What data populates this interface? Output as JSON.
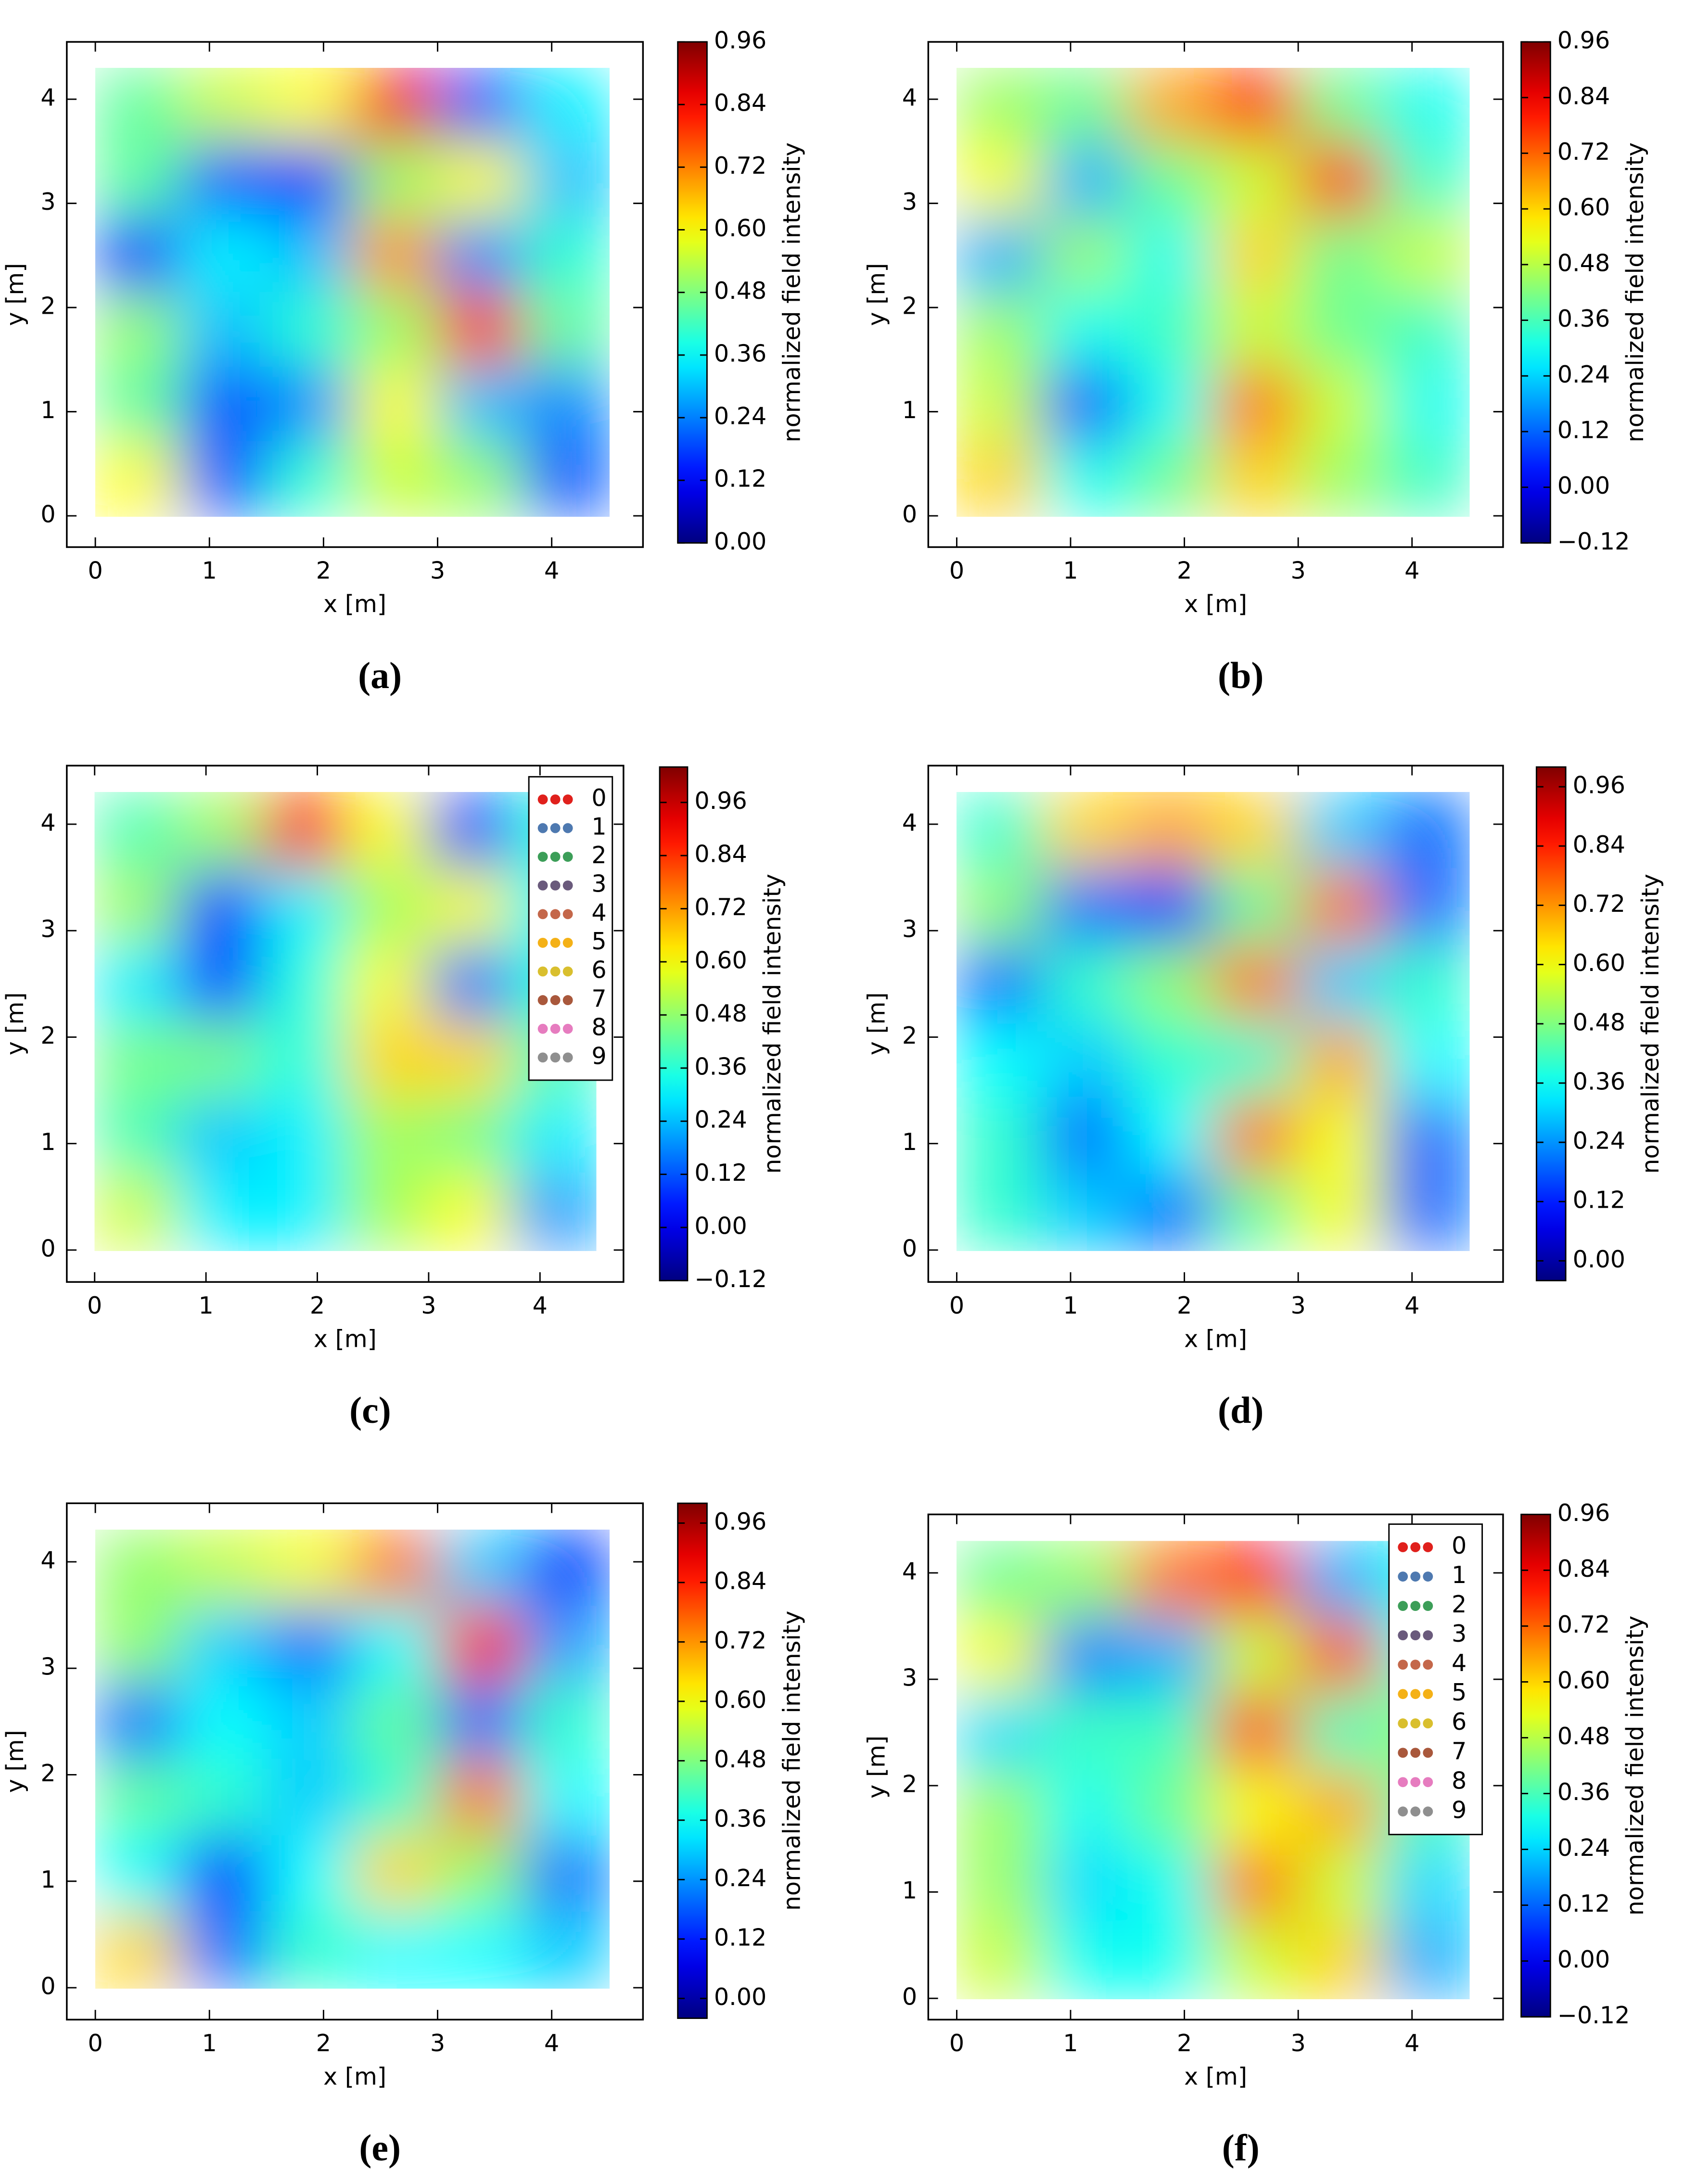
{
  "chart_data": [
    {
      "type": "heatmap",
      "caption": "(a)",
      "xlabel": "x [m]",
      "ylabel": "y [m]",
      "colorbar_label": "normalized field intensity",
      "xlim": [
        -0.25,
        4.8
      ],
      "ylim": [
        -0.3,
        4.55
      ],
      "xticks": [
        0,
        1,
        2,
        3,
        4
      ],
      "yticks": [
        0,
        1,
        2,
        3,
        4
      ],
      "clim": [
        0,
        0.96
      ],
      "cticks": [
        {
          "value": 0,
          "label": "0.00"
        },
        0.12,
        0.24,
        0.36,
        0.48,
        {
          "value": 0.6,
          "label": "0.60"
        },
        0.72,
        0.84,
        0.96
      ],
      "heatmap": {
        "x": [
          0.375,
          1.125,
          1.875,
          2.625,
          3.375,
          4.125
        ],
        "y": [
          3.942,
          3.225,
          2.508,
          1.792,
          1.075,
          0.358
        ],
        "z": [
          [
            0.45,
            0.55,
            0.6,
            0.85,
            0.2,
            0.35
          ],
          [
            0.45,
            0.2,
            0.15,
            0.5,
            0.6,
            0.3
          ],
          [
            0.15,
            0.35,
            0.3,
            0.7,
            0.25,
            0.4
          ],
          [
            0.5,
            0.3,
            0.4,
            0.5,
            0.8,
            0.45
          ],
          [
            0.45,
            0.2,
            0.25,
            0.6,
            0.3,
            0.25
          ],
          [
            0.6,
            0.2,
            0.4,
            0.55,
            0.5,
            0.2
          ]
        ]
      }
    },
    {
      "type": "heatmap",
      "caption": "(b)",
      "xlabel": "x [m]",
      "ylabel": "y [m]",
      "colorbar_label": "normalized field intensity",
      "xlim": [
        -0.25,
        4.8
      ],
      "ylim": [
        -0.3,
        4.55
      ],
      "xticks": [
        0,
        1,
        2,
        3,
        4
      ],
      "yticks": [
        0,
        1,
        2,
        3,
        4
      ],
      "clim": [
        -0.12,
        0.96
      ],
      "cticks": [
        {
          "value": -0.12,
          "label": "−0.12"
        },
        {
          "value": 0,
          "label": "0.00"
        },
        0.12,
        0.24,
        0.36,
        0.48,
        {
          "value": 0.6,
          "label": "0.60"
        },
        0.72,
        0.84,
        0.96
      ],
      "heatmap": {
        "x": [
          0.375,
          1.125,
          1.875,
          2.625,
          3.375,
          4.125
        ],
        "y": [
          3.942,
          3.225,
          2.508,
          1.792,
          1.075,
          0.358
        ],
        "z": [
          [
            0.45,
            0.4,
            0.65,
            0.8,
            0.4,
            0.3
          ],
          [
            0.55,
            0.2,
            0.4,
            0.5,
            0.8,
            0.35
          ],
          [
            0.2,
            0.45,
            0.3,
            0.6,
            0.4,
            0.5
          ],
          [
            0.45,
            0.3,
            0.35,
            0.5,
            0.4,
            0.35
          ],
          [
            0.5,
            0.1,
            0.3,
            0.7,
            0.5,
            0.3
          ],
          [
            0.6,
            0.3,
            0.4,
            0.6,
            0.45,
            0.35
          ]
        ]
      }
    },
    {
      "type": "heatmap",
      "caption": "(c)",
      "xlabel": "x [m]",
      "ylabel": "y [m]",
      "colorbar_label": "normalized field intensity",
      "xlim": [
        -0.25,
        4.75
      ],
      "ylim": [
        -0.3,
        4.55
      ],
      "xticks": [
        0,
        1,
        2,
        3,
        4
      ],
      "yticks": [
        0,
        1,
        2,
        3,
        4
      ],
      "clim": [
        -0.12,
        1.04
      ],
      "cticks": [
        {
          "value": -0.12,
          "label": "−0.12"
        },
        {
          "value": 0,
          "label": "0.00"
        },
        0.12,
        0.24,
        0.36,
        0.48,
        {
          "value": 0.6,
          "label": "0.60"
        },
        0.72,
        0.84,
        0.96
      ],
      "heatmap": {
        "x": [
          0.375,
          1.125,
          1.875,
          2.625,
          3.375,
          4.125
        ],
        "y": [
          3.942,
          3.225,
          2.508,
          1.792,
          1.075,
          0.358
        ],
        "z": [
          [
            0.4,
            0.5,
            0.9,
            0.6,
            0.1,
            0.35
          ],
          [
            0.5,
            0.1,
            0.3,
            0.5,
            0.6,
            0.3
          ],
          [
            0.3,
            0.1,
            0.35,
            0.6,
            0.15,
            0.35
          ],
          [
            0.45,
            0.45,
            0.35,
            0.65,
            0.65,
            0.4
          ],
          [
            0.4,
            0.25,
            0.3,
            0.5,
            0.45,
            0.3
          ],
          [
            0.55,
            0.3,
            0.3,
            0.5,
            0.6,
            0.2
          ]
        ]
      },
      "legend": [
        {
          "name": "0",
          "color": "#e0201c"
        },
        {
          "name": "1",
          "color": "#4e79b0"
        },
        {
          "name": "2",
          "color": "#3c9e58"
        },
        {
          "name": "3",
          "color": "#6a5a7c"
        },
        {
          "name": "4",
          "color": "#c4674a"
        },
        {
          "name": "5",
          "color": "#f4b117"
        },
        {
          "name": "6",
          "color": "#d9bf2e"
        },
        {
          "name": "7",
          "color": "#a9583c"
        },
        {
          "name": "8",
          "color": "#e67cbf"
        },
        {
          "name": "9",
          "color": "#8f8f8f"
        }
      ]
    },
    {
      "type": "heatmap",
      "caption": "(d)",
      "xlabel": "x [m]",
      "ylabel": "y [m]",
      "colorbar_label": "normalized field intensity",
      "xlim": [
        -0.25,
        4.8
      ],
      "ylim": [
        -0.3,
        4.55
      ],
      "xticks": [
        0,
        1,
        2,
        3,
        4
      ],
      "yticks": [
        0,
        1,
        2,
        3,
        4
      ],
      "clim": [
        -0.04,
        1.0
      ],
      "cticks": [
        {
          "value": 0,
          "label": "0.00"
        },
        0.12,
        0.24,
        0.36,
        0.48,
        {
          "value": 0.6,
          "label": "0.60"
        },
        0.72,
        0.84,
        0.96
      ],
      "heatmap": {
        "x": [
          0.375,
          1.125,
          1.875,
          2.625,
          3.375,
          4.125
        ],
        "y": [
          3.942,
          3.225,
          2.508,
          1.792,
          1.075,
          0.358
        ],
        "z": [
          [
            0.4,
            0.65,
            0.7,
            0.65,
            0.3,
            0.2
          ],
          [
            0.5,
            0.2,
            0.15,
            0.45,
            0.75,
            0.2
          ],
          [
            0.2,
            0.4,
            0.5,
            0.75,
            0.3,
            0.4
          ],
          [
            0.35,
            0.3,
            0.4,
            0.4,
            0.7,
            0.35
          ],
          [
            0.4,
            0.2,
            0.35,
            0.75,
            0.6,
            0.2
          ],
          [
            0.4,
            0.3,
            0.2,
            0.45,
            0.6,
            0.2
          ]
        ]
      }
    },
    {
      "type": "heatmap",
      "caption": "(e)",
      "xlabel": "x [m]",
      "ylabel": "y [m]",
      "colorbar_label": "normalized field intensity",
      "xlim": [
        -0.25,
        4.8
      ],
      "ylim": [
        -0.3,
        4.55
      ],
      "xticks": [
        0,
        1,
        2,
        3,
        4
      ],
      "yticks": [
        0,
        1,
        2,
        3,
        4
      ],
      "clim": [
        -0.04,
        1.0
      ],
      "cticks": [
        {
          "value": 0,
          "label": "0.00"
        },
        0.12,
        0.24,
        0.36,
        0.48,
        {
          "value": 0.6,
          "label": "0.60"
        },
        0.72,
        0.84,
        0.96
      ],
      "heatmap": {
        "x": [
          0.375,
          1.125,
          1.875,
          2.625,
          3.375,
          4.125
        ],
        "y": [
          3.942,
          3.225,
          2.508,
          1.792,
          1.075,
          0.358
        ],
        "z": [
          [
            0.5,
            0.55,
            0.6,
            0.75,
            0.3,
            0.15
          ],
          [
            0.5,
            0.3,
            0.2,
            0.35,
            0.85,
            0.25
          ],
          [
            0.2,
            0.35,
            0.3,
            0.45,
            0.2,
            0.4
          ],
          [
            0.45,
            0.4,
            0.3,
            0.4,
            0.75,
            0.35
          ],
          [
            0.35,
            0.15,
            0.35,
            0.65,
            0.5,
            0.2
          ],
          [
            0.65,
            0.2,
            0.4,
            0.35,
            0.35,
            0.3
          ]
        ]
      }
    },
    {
      "type": "heatmap",
      "caption": "(f)",
      "xlabel": "x [m]",
      "ylabel": "y [m]",
      "colorbar_label": "normalized field intensity",
      "xlim": [
        -0.25,
        4.8
      ],
      "ylim": [
        -0.2,
        4.55
      ],
      "xticks": [
        0,
        1,
        2,
        3,
        4
      ],
      "yticks": [
        0,
        1,
        2,
        3,
        4
      ],
      "clim": [
        -0.12,
        0.96
      ],
      "cticks": [
        {
          "value": -0.12,
          "label": "−0.12"
        },
        {
          "value": 0,
          "label": "0.00"
        },
        0.12,
        0.24,
        0.36,
        0.48,
        {
          "value": 0.6,
          "label": "0.60"
        },
        0.72,
        0.84,
        0.96
      ],
      "heatmap": {
        "x": [
          0.375,
          1.125,
          1.875,
          2.625,
          3.375,
          4.125
        ],
        "y": [
          3.942,
          3.225,
          2.508,
          1.792,
          1.075,
          0.358
        ],
        "z": [
          [
            0.4,
            0.45,
            0.7,
            0.8,
            0.2,
            0.3
          ],
          [
            0.55,
            0.15,
            0.2,
            0.5,
            0.75,
            0.3
          ],
          [
            0.25,
            0.35,
            0.35,
            0.75,
            0.35,
            0.45
          ],
          [
            0.45,
            0.3,
            0.4,
            0.55,
            0.65,
            0.35
          ],
          [
            0.45,
            0.25,
            0.3,
            0.7,
            0.5,
            0.25
          ],
          [
            0.5,
            0.3,
            0.3,
            0.5,
            0.6,
            0.2
          ]
        ]
      },
      "legend": [
        {
          "name": "0",
          "color": "#e0201c"
        },
        {
          "name": "1",
          "color": "#4e79b0"
        },
        {
          "name": "2",
          "color": "#3c9e58"
        },
        {
          "name": "3",
          "color": "#6a5a7c"
        },
        {
          "name": "4",
          "color": "#c4674a"
        },
        {
          "name": "5",
          "color": "#f4b117"
        },
        {
          "name": "6",
          "color": "#d9bf2e"
        },
        {
          "name": "7",
          "color": "#a9583c"
        },
        {
          "name": "8",
          "color": "#e67cbf"
        },
        {
          "name": "9",
          "color": "#8f8f8f"
        }
      ]
    }
  ]
}
